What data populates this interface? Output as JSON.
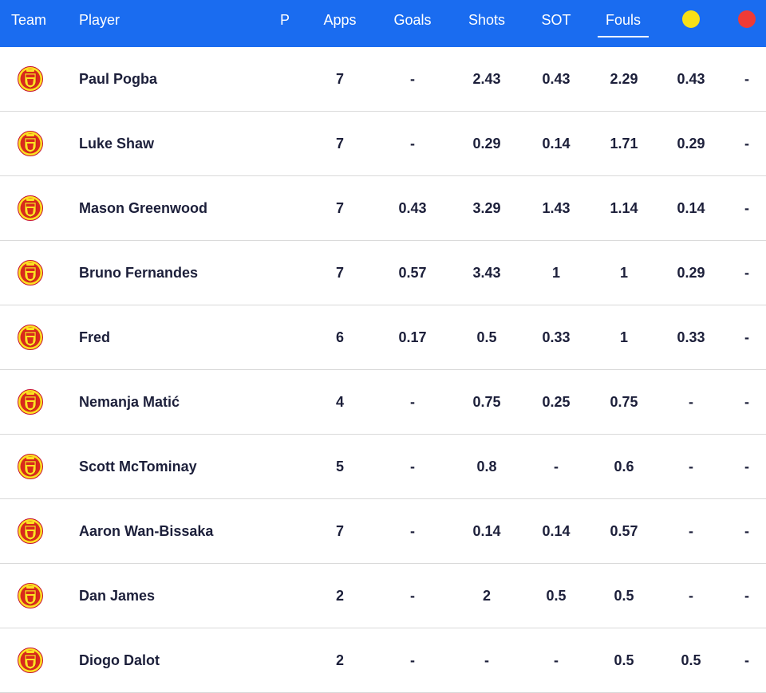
{
  "colors": {
    "header_bg": "#1a6cf0",
    "yellow_card": "#f7e017",
    "red_card": "#ef3b36",
    "text": "#1c1f3a",
    "crest_red": "#da291c",
    "crest_gold": "#fbe122"
  },
  "header": {
    "team": "Team",
    "player": "Player",
    "p": "P",
    "apps": "Apps",
    "goals": "Goals",
    "shots": "Shots",
    "sot": "SOT",
    "fouls": "Fouls",
    "yellow_icon": "yellow-card-icon",
    "red_icon": "red-card-icon",
    "active_sort": "Fouls"
  },
  "rows": [
    {
      "team_icon": "manchester-united-crest-icon",
      "player": "Paul Pogba",
      "p": "",
      "apps": "7",
      "goals": "-",
      "shots": "2.43",
      "sot": "0.43",
      "fouls": "2.29",
      "yellow": "0.43",
      "red": "-"
    },
    {
      "team_icon": "manchester-united-crest-icon",
      "player": "Luke Shaw",
      "p": "",
      "apps": "7",
      "goals": "-",
      "shots": "0.29",
      "sot": "0.14",
      "fouls": "1.71",
      "yellow": "0.29",
      "red": "-"
    },
    {
      "team_icon": "manchester-united-crest-icon",
      "player": "Mason Greenwood",
      "p": "",
      "apps": "7",
      "goals": "0.43",
      "shots": "3.29",
      "sot": "1.43",
      "fouls": "1.14",
      "yellow": "0.14",
      "red": "-"
    },
    {
      "team_icon": "manchester-united-crest-icon",
      "player": "Bruno Fernandes",
      "p": "",
      "apps": "7",
      "goals": "0.57",
      "shots": "3.43",
      "sot": "1",
      "fouls": "1",
      "yellow": "0.29",
      "red": "-"
    },
    {
      "team_icon": "manchester-united-crest-icon",
      "player": "Fred",
      "p": "",
      "apps": "6",
      "goals": "0.17",
      "shots": "0.5",
      "sot": "0.33",
      "fouls": "1",
      "yellow": "0.33",
      "red": "-"
    },
    {
      "team_icon": "manchester-united-crest-icon",
      "player": "Nemanja Matić",
      "p": "",
      "apps": "4",
      "goals": "-",
      "shots": "0.75",
      "sot": "0.25",
      "fouls": "0.75",
      "yellow": "-",
      "red": "-"
    },
    {
      "team_icon": "manchester-united-crest-icon",
      "player": "Scott McTominay",
      "p": "",
      "apps": "5",
      "goals": "-",
      "shots": "0.8",
      "sot": "-",
      "fouls": "0.6",
      "yellow": "-",
      "red": "-"
    },
    {
      "team_icon": "manchester-united-crest-icon",
      "player": "Aaron Wan-Bissaka",
      "p": "",
      "apps": "7",
      "goals": "-",
      "shots": "0.14",
      "sot": "0.14",
      "fouls": "0.57",
      "yellow": "-",
      "red": "-"
    },
    {
      "team_icon": "manchester-united-crest-icon",
      "player": "Dan James",
      "p": "",
      "apps": "2",
      "goals": "-",
      "shots": "2",
      "sot": "0.5",
      "fouls": "0.5",
      "yellow": "-",
      "red": "-"
    },
    {
      "team_icon": "manchester-united-crest-icon",
      "player": "Diogo Dalot",
      "p": "",
      "apps": "2",
      "goals": "-",
      "shots": "-",
      "sot": "-",
      "fouls": "0.5",
      "yellow": "0.5",
      "red": "-"
    }
  ]
}
